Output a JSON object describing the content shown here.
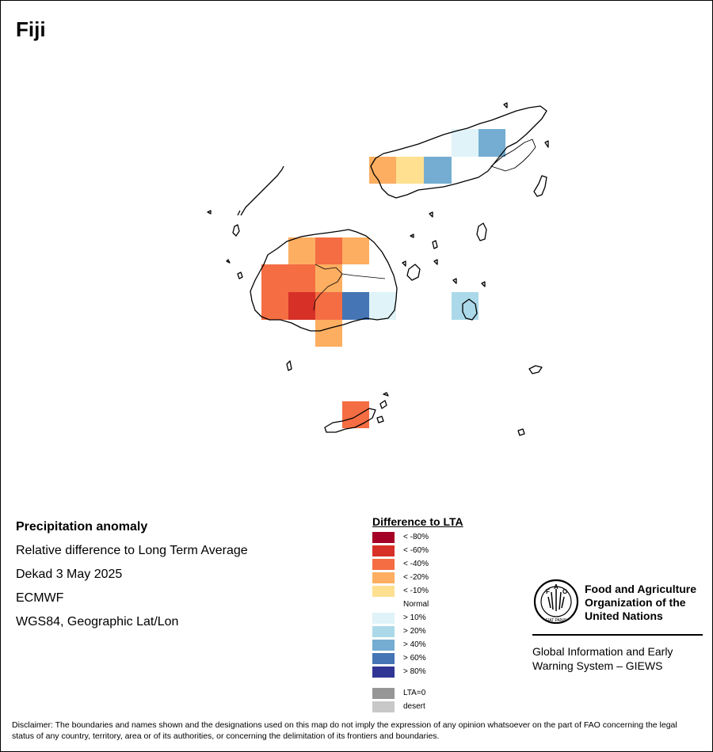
{
  "map": {
    "title": "Fiji",
    "product": "Precipitation anomaly",
    "measure": "Relative difference to Long Term Average",
    "period": "Dekad 3 May 2025",
    "source": "ECMWF",
    "projection": "WGS84, Geographic Lat/Lon"
  },
  "legend": {
    "title": "Difference to LTA",
    "items": [
      {
        "label": "< -80%",
        "color": "#a50026"
      },
      {
        "label": "< -60%",
        "color": "#d73027"
      },
      {
        "label": "< -40%",
        "color": "#f46d43"
      },
      {
        "label": "< -20%",
        "color": "#fdae61"
      },
      {
        "label": "< -10%",
        "color": "#fee090"
      },
      {
        "label": "Normal",
        "color": "#ffffff"
      },
      {
        "label": "> 10%",
        "color": "#e0f3f8"
      },
      {
        "label": "> 20%",
        "color": "#abd9e9"
      },
      {
        "label": "> 40%",
        "color": "#74add1"
      },
      {
        "label": "> 60%",
        "color": "#4575b4"
      },
      {
        "label": "> 80%",
        "color": "#313695"
      }
    ],
    "extra": [
      {
        "label": "LTA=0",
        "color": "#969696"
      },
      {
        "label": "desert",
        "color": "#c8c8c8"
      }
    ]
  },
  "organization": {
    "name_line1": "Food and Agriculture",
    "name_line2": "Organization of the",
    "name_line3": "United Nations",
    "logo_text": "FIAT PANIS",
    "system_line1": "Global Information and Early",
    "system_line2": "Warning System – GIEWS"
  },
  "disclaimer": "Disclaimer: The boundaries and names shown and the designations used on this map do not imply the expression of any opinion whatsoever on the part of FAO concerning the legal status of any country, territory, area or of its authorities, or concerning the delimitation of its frontiers and boundaries."
}
